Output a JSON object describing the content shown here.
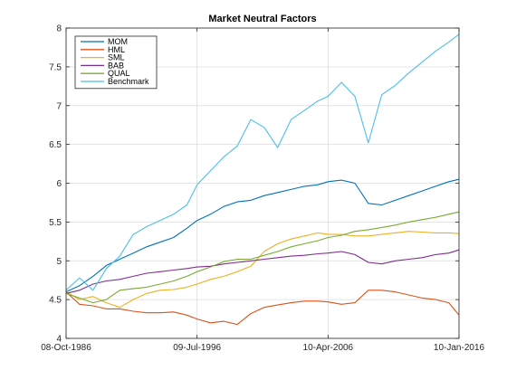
{
  "chart_data": {
    "type": "line",
    "title": "Market Neutral Factors",
    "xlabel": "",
    "ylabel": "",
    "x_ticks": [
      "08-Oct-1986",
      "09-Jul-1996",
      "10-Apr-2006",
      "10-Jan-2016"
    ],
    "y_ticks": [
      "4",
      "4.5",
      "5",
      "5.5",
      "6",
      "6.5",
      "7",
      "7.5",
      "8"
    ],
    "xlim": [
      "08-Oct-1986",
      "10-Jan-2016"
    ],
    "ylim": [
      4,
      8
    ],
    "grid": true,
    "legend_position": "top-left",
    "x": [
      "1986-10-08",
      "1987-10-08",
      "1988-10-08",
      "1989-10-08",
      "1990-10-08",
      "1991-10-08",
      "1992-10-08",
      "1993-10-08",
      "1994-10-08",
      "1995-10-08",
      "1996-07-09",
      "1997-07-09",
      "1998-07-09",
      "1999-07-09",
      "2000-07-09",
      "2001-07-09",
      "2002-07-09",
      "2003-07-09",
      "2004-07-09",
      "2005-07-09",
      "2006-04-10",
      "2007-04-10",
      "2008-04-10",
      "2009-04-10",
      "2010-04-10",
      "2011-04-10",
      "2012-04-10",
      "2013-04-10",
      "2014-04-10",
      "2015-04-10",
      "2016-01-10"
    ],
    "series": [
      {
        "name": "MOM",
        "color": "#0072BD",
        "values": [
          4.6,
          4.68,
          4.8,
          4.94,
          5.02,
          5.1,
          5.18,
          5.24,
          5.3,
          5.42,
          5.52,
          5.6,
          5.7,
          5.76,
          5.78,
          5.84,
          5.88,
          5.92,
          5.96,
          5.98,
          6.02,
          6.04,
          6.0,
          5.74,
          5.72,
          5.78,
          5.84,
          5.9,
          5.96,
          6.02,
          6.05
        ]
      },
      {
        "name": "HML",
        "color": "#D95319",
        "values": [
          4.6,
          4.44,
          4.42,
          4.38,
          4.38,
          4.35,
          4.33,
          4.33,
          4.34,
          4.3,
          4.25,
          4.2,
          4.22,
          4.18,
          4.32,
          4.4,
          4.43,
          4.46,
          4.48,
          4.48,
          4.47,
          4.44,
          4.46,
          4.62,
          4.62,
          4.6,
          4.56,
          4.52,
          4.5,
          4.46,
          4.3
        ]
      },
      {
        "name": "SML",
        "color": "#EDB120",
        "values": [
          4.6,
          4.5,
          4.54,
          4.46,
          4.4,
          4.5,
          4.58,
          4.62,
          4.63,
          4.66,
          4.7,
          4.76,
          4.8,
          4.86,
          4.93,
          5.12,
          5.22,
          5.28,
          5.32,
          5.36,
          5.34,
          5.34,
          5.32,
          5.32,
          5.34,
          5.36,
          5.38,
          5.37,
          5.36,
          5.36,
          5.35
        ]
      },
      {
        "name": "BAB",
        "color": "#7E2F8E",
        "values": [
          4.58,
          4.62,
          4.7,
          4.74,
          4.76,
          4.8,
          4.84,
          4.86,
          4.88,
          4.9,
          4.92,
          4.93,
          4.96,
          4.98,
          5.0,
          5.02,
          5.04,
          5.06,
          5.07,
          5.09,
          5.1,
          5.12,
          5.08,
          4.98,
          4.96,
          5.0,
          5.02,
          5.04,
          5.08,
          5.1,
          5.14
        ]
      },
      {
        "name": "QUAL",
        "color": "#77AC30",
        "values": [
          4.58,
          4.52,
          4.46,
          4.5,
          4.62,
          4.64,
          4.66,
          4.7,
          4.74,
          4.8,
          4.86,
          4.92,
          4.99,
          5.02,
          5.02,
          5.07,
          5.12,
          5.18,
          5.22,
          5.26,
          5.3,
          5.33,
          5.38,
          5.4,
          5.43,
          5.46,
          5.5,
          5.53,
          5.56,
          5.6,
          5.63
        ]
      },
      {
        "name": "Benchmark",
        "color": "#4DBEEE",
        "values": [
          4.62,
          4.78,
          4.62,
          4.9,
          5.06,
          5.34,
          5.44,
          5.52,
          5.6,
          5.72,
          5.98,
          6.16,
          6.34,
          6.48,
          6.82,
          6.72,
          6.46,
          6.82,
          6.94,
          7.06,
          7.12,
          7.3,
          7.12,
          6.52,
          7.14,
          7.26,
          7.42,
          7.56,
          7.7,
          7.82,
          7.92
        ]
      }
    ]
  }
}
